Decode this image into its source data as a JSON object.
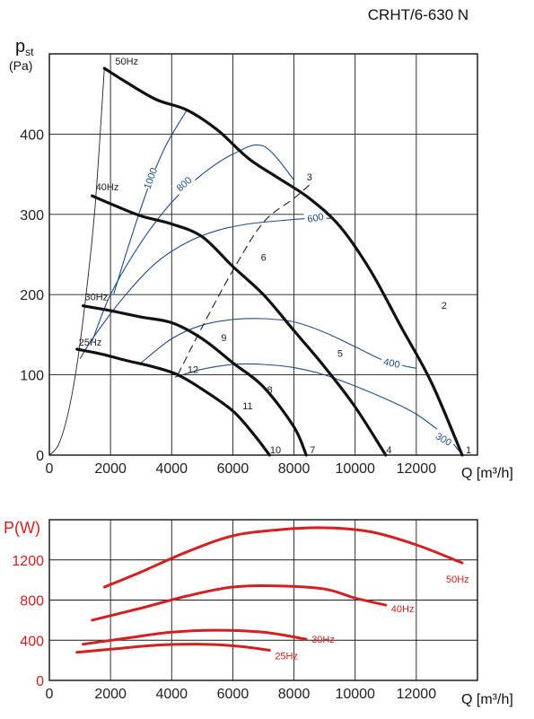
{
  "title": "CRHT/6-630 N",
  "chart_data": [
    {
      "type": "line",
      "title": "CRHT/6-630 N",
      "ylabel_main": "p",
      "ylabel_sub": "st",
      "ylabel_unit": "(Pa)",
      "xlabel": "Q [m³/h]",
      "xlim": [
        0,
        14000
      ],
      "ylim": [
        0,
        500
      ],
      "xticks": [
        0,
        2000,
        4000,
        6000,
        8000,
        10000,
        12000
      ],
      "yticks": [
        0,
        100,
        200,
        300,
        400
      ],
      "grid": true,
      "series": [
        {
          "name": "50Hz",
          "x": [
            1800,
            2500,
            3500,
            4500,
            5500,
            6500,
            7500,
            8500,
            9500,
            10500,
            11500,
            12500,
            13500
          ],
          "y": [
            482,
            465,
            443,
            430,
            405,
            370,
            345,
            320,
            285,
            230,
            160,
            90,
            0
          ]
        },
        {
          "name": "40Hz",
          "x": [
            1400,
            2200,
            3000,
            4000,
            5000,
            6000,
            7000,
            8000,
            9000,
            10000,
            11000
          ],
          "y": [
            323,
            310,
            298,
            288,
            272,
            235,
            200,
            155,
            110,
            60,
            0
          ]
        },
        {
          "name": "30Hz",
          "x": [
            1100,
            2000,
            3000,
            4000,
            5000,
            6000,
            7000,
            8000,
            8400
          ],
          "y": [
            186,
            180,
            172,
            165,
            145,
            115,
            85,
            35,
            0
          ]
        },
        {
          "name": "25Hz",
          "x": [
            900,
            1700,
            2500,
            3400,
            4200,
            5000,
            6000,
            6700,
            7200
          ],
          "y": [
            132,
            126,
            118,
            110,
            100,
            82,
            55,
            25,
            0
          ]
        }
      ],
      "system_curve": {
        "x": [
          0,
          300,
          600,
          900,
          1200,
          1500,
          1800
        ],
        "y": [
          0,
          13,
          50,
          112,
          200,
          312,
          482
        ]
      },
      "rpm_curves": [
        {
          "label": "1000",
          "x": [
            2100,
            2600,
            3200,
            3800,
            4500
          ],
          "y": [
            200,
            262,
            330,
            385,
            430
          ]
        },
        {
          "label": "800",
          "x": [
            1400,
            2000,
            3000,
            4000,
            5000,
            6000,
            7000,
            8000
          ],
          "y": [
            142,
            200,
            265,
            315,
            350,
            375,
            385,
            343
          ]
        },
        {
          "label": "600",
          "x": [
            1000,
            1500,
            2500,
            3500,
            4500,
            5500,
            6500,
            7500,
            8500,
            9200
          ],
          "y": [
            120,
            150,
            200,
            240,
            265,
            280,
            288,
            292,
            295,
            295
          ]
        },
        {
          "label": "400",
          "x": [
            3000,
            4000,
            5000,
            6000,
            7000,
            8000,
            9000,
            10000,
            11000,
            12000
          ],
          "y": [
            115,
            145,
            162,
            169,
            170,
            166,
            153,
            135,
            117,
            108
          ]
        },
        {
          "label": "300",
          "x": [
            4100,
            5000,
            6000,
            7000,
            8000,
            9000,
            10000,
            11000,
            12000,
            13000,
            13400
          ],
          "y": [
            97,
            107,
            113,
            113,
            109,
            100,
            86,
            70,
            51,
            22,
            5
          ]
        }
      ],
      "dashed_line": {
        "x": [
          4200,
          5000,
          6000,
          7000,
          8000,
          8600
        ],
        "y": [
          100,
          160,
          230,
          290,
          320,
          340
        ]
      },
      "point_labels": [
        {
          "label": "1",
          "x": 13500,
          "y": 0
        },
        {
          "label": "2",
          "x": 12700,
          "y": 180
        },
        {
          "label": "3",
          "x": 8300,
          "y": 340
        },
        {
          "label": "4",
          "x": 10900,
          "y": 0
        },
        {
          "label": "5",
          "x": 9300,
          "y": 120
        },
        {
          "label": "6",
          "x": 6800,
          "y": 240
        },
        {
          "label": "7",
          "x": 8400,
          "y": 0
        },
        {
          "label": "8",
          "x": 7000,
          "y": 75
        },
        {
          "label": "9",
          "x": 5500,
          "y": 140
        },
        {
          "label": "10",
          "x": 7100,
          "y": 0
        },
        {
          "label": "11",
          "x": 6200,
          "y": 55
        },
        {
          "label": "12",
          "x": 4400,
          "y": 100
        }
      ]
    },
    {
      "type": "line",
      "ylabel": "P(W)",
      "xlabel": "Q [m³/h]",
      "xlim": [
        0,
        14000
      ],
      "ylim": [
        0,
        1600
      ],
      "xticks": [
        0,
        2000,
        4000,
        6000,
        8000,
        10000,
        12000
      ],
      "yticks": [
        0,
        400,
        800,
        1200
      ],
      "grid": true,
      "series": [
        {
          "name": "50Hz",
          "x": [
            1800,
            3000,
            4500,
            6000,
            7500,
            9000,
            10500,
            12000,
            13500
          ],
          "y": [
            930,
            1080,
            1280,
            1440,
            1500,
            1520,
            1480,
            1350,
            1170
          ]
        },
        {
          "name": "40Hz",
          "x": [
            1400,
            3000,
            4500,
            6000,
            7500,
            9000,
            10000,
            11000
          ],
          "y": [
            600,
            720,
            840,
            930,
            940,
            910,
            820,
            750
          ]
        },
        {
          "name": "30Hz",
          "x": [
            1100,
            2500,
            4000,
            5500,
            7000,
            8400
          ],
          "y": [
            360,
            420,
            480,
            500,
            480,
            410
          ]
        },
        {
          "name": "25Hz",
          "x": [
            900,
            2000,
            3500,
            5000,
            6200,
            7200
          ],
          "y": [
            280,
            310,
            350,
            360,
            340,
            300
          ]
        }
      ]
    }
  ]
}
